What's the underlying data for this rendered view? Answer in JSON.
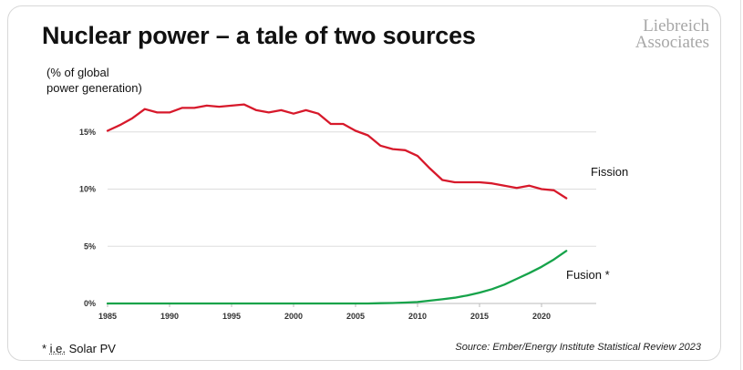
{
  "title": "Nuclear power – a tale of two sources",
  "logo": {
    "line1": "Liebreich",
    "line2": "Associates"
  },
  "y_axis_label": {
    "line1": "(% of global",
    "line2": "power generation)"
  },
  "footnote": {
    "marker": "* ",
    "abbr": "i.e.",
    "text": " Solar PV"
  },
  "source": "Source: Ember/Energy Institute Statistical Review 2023",
  "colors": {
    "fission": "#d7192b",
    "fusion": "#16a34a",
    "grid": "#dddddd",
    "axis": "#bbbbbb"
  },
  "chart_data": {
    "type": "line",
    "title": "Nuclear power – a tale of two sources",
    "xlabel": "",
    "ylabel": "(% of global power generation)",
    "xlim": [
      1985,
      2025
    ],
    "ylim": [
      0,
      20
    ],
    "x_ticks": [
      1985,
      1990,
      1995,
      2000,
      2005,
      2010,
      2015,
      2020
    ],
    "y_ticks": [
      0,
      5,
      10,
      15
    ],
    "y_tick_labels": [
      "0%",
      "5%",
      "10%",
      "15%"
    ],
    "series": [
      {
        "name": "Fission",
        "label": "Fission",
        "color_key": "fission",
        "x": [
          1985,
          1986,
          1987,
          1988,
          1989,
          1990,
          1991,
          1992,
          1993,
          1994,
          1995,
          1996,
          1997,
          1998,
          1999,
          2000,
          2001,
          2002,
          2003,
          2004,
          2005,
          2006,
          2007,
          2008,
          2009,
          2010,
          2011,
          2012,
          2013,
          2014,
          2015,
          2016,
          2017,
          2018,
          2019,
          2020,
          2021,
          2022
        ],
        "values": [
          15.1,
          15.6,
          16.2,
          17.0,
          16.7,
          16.7,
          17.1,
          17.1,
          17.3,
          17.2,
          17.3,
          17.4,
          16.9,
          16.7,
          16.9,
          16.6,
          16.9,
          16.6,
          15.7,
          15.7,
          15.1,
          14.7,
          13.8,
          13.5,
          13.4,
          12.9,
          11.8,
          10.8,
          10.6,
          10.6,
          10.6,
          10.5,
          10.3,
          10.1,
          10.3,
          10.0,
          9.9,
          9.2
        ]
      },
      {
        "name": "Fusion *",
        "label": "Fusion *",
        "color_key": "fusion",
        "x": [
          1985,
          1990,
          1995,
          2000,
          2005,
          2006,
          2007,
          2008,
          2009,
          2010,
          2011,
          2012,
          2013,
          2014,
          2015,
          2016,
          2017,
          2018,
          2019,
          2020,
          2021,
          2022
        ],
        "values": [
          0.0,
          0.0,
          0.0,
          0.0,
          0.0,
          0.0,
          0.02,
          0.04,
          0.08,
          0.13,
          0.25,
          0.37,
          0.5,
          0.7,
          0.95,
          1.25,
          1.65,
          2.15,
          2.65,
          3.2,
          3.85,
          4.6
        ]
      }
    ]
  }
}
